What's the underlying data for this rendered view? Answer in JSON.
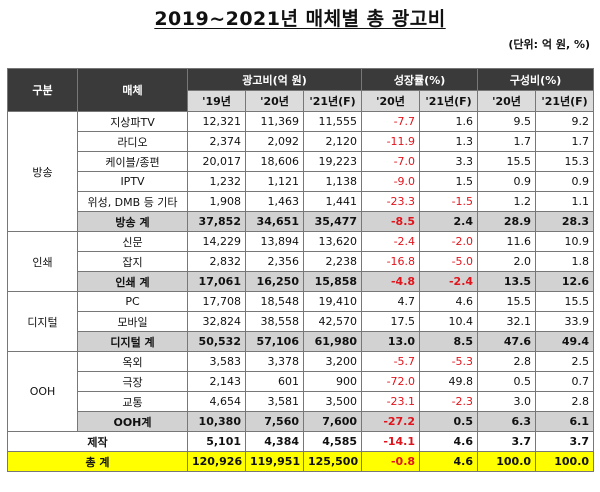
{
  "title": "2019~2021년 매체별 총 광고비",
  "unit": "(단위: 억 원, %)",
  "header": {
    "col_category": "구분",
    "col_media": "매체",
    "group_ad": "광고비(억 원)",
    "group_growth": "성장률(%)",
    "group_share": "구성비(%)",
    "y19": "'19년",
    "y20": "'20년",
    "y21f": "'21년(F)"
  },
  "sections": [
    {
      "label": "방송",
      "rows": [
        {
          "media": "지상파TV",
          "v": [
            "12,321",
            "11,369",
            "11,555",
            "-7.7",
            "1.6",
            "9.5",
            "9.2"
          ]
        },
        {
          "media": "라디오",
          "v": [
            "2,374",
            "2,092",
            "2,120",
            "-11.9",
            "1.3",
            "1.7",
            "1.7"
          ]
        },
        {
          "media": "케이블/종편",
          "v": [
            "20,017",
            "18,606",
            "19,223",
            "-7.0",
            "3.3",
            "15.5",
            "15.3"
          ]
        },
        {
          "media": "IPTV",
          "v": [
            "1,232",
            "1,121",
            "1,138",
            "-9.0",
            "1.5",
            "0.9",
            "0.9"
          ]
        },
        {
          "media": "위성, DMB 등 기타",
          "v": [
            "1,908",
            "1,463",
            "1,441",
            "-23.3",
            "-1.5",
            "1.2",
            "1.1"
          ]
        }
      ],
      "subtotal": {
        "media": "방송 계",
        "v": [
          "37,852",
          "34,651",
          "35,477",
          "-8.5",
          "2.4",
          "28.9",
          "28.3"
        ]
      }
    },
    {
      "label": "인쇄",
      "rows": [
        {
          "media": "신문",
          "v": [
            "14,229",
            "13,894",
            "13,620",
            "-2.4",
            "-2.0",
            "11.6",
            "10.9"
          ]
        },
        {
          "media": "잡지",
          "v": [
            "2,832",
            "2,356",
            "2,238",
            "-16.8",
            "-5.0",
            "2.0",
            "1.8"
          ]
        }
      ],
      "subtotal": {
        "media": "인쇄 계",
        "v": [
          "17,061",
          "16,250",
          "15,858",
          "-4.8",
          "-2.4",
          "13.5",
          "12.6"
        ]
      }
    },
    {
      "label": "디지털",
      "rows": [
        {
          "media": "PC",
          "v": [
            "17,708",
            "18,548",
            "19,410",
            "4.7",
            "4.6",
            "15.5",
            "15.5"
          ]
        },
        {
          "media": "모바일",
          "v": [
            "32,824",
            "38,558",
            "42,570",
            "17.5",
            "10.4",
            "32.1",
            "33.9"
          ]
        }
      ],
      "subtotal": {
        "media": "디지털 계",
        "v": [
          "50,532",
          "57,106",
          "61,980",
          "13.0",
          "8.5",
          "47.6",
          "49.4"
        ]
      }
    },
    {
      "label": "OOH",
      "rows": [
        {
          "media": "옥외",
          "v": [
            "3,583",
            "3,378",
            "3,200",
            "-5.7",
            "-5.3",
            "2.8",
            "2.5"
          ]
        },
        {
          "media": "극장",
          "v": [
            "2,143",
            "601",
            "900",
            "-72.0",
            "49.8",
            "0.5",
            "0.7"
          ]
        },
        {
          "media": "교통",
          "v": [
            "4,654",
            "3,581",
            "3,500",
            "-23.1",
            "-2.3",
            "3.0",
            "2.8"
          ]
        }
      ],
      "subtotal": {
        "media": "OOH계",
        "v": [
          "10,380",
          "7,560",
          "7,600",
          "-27.2",
          "0.5",
          "6.3",
          "6.1"
        ]
      }
    }
  ],
  "production": {
    "label": "제작",
    "v": [
      "5,101",
      "4,384",
      "4,585",
      "-14.1",
      "4.6",
      "3.7",
      "3.7"
    ]
  },
  "total": {
    "label": "총 계",
    "v": [
      "120,926",
      "119,951",
      "125,500",
      "-0.8",
      "4.6",
      "100.0",
      "100.0"
    ]
  },
  "colors": {
    "negative": "#e0141c",
    "header_dark": "#3a3a3a",
    "subtotal_bg": "#d2d2d2",
    "total_bg": "#ffff00"
  }
}
